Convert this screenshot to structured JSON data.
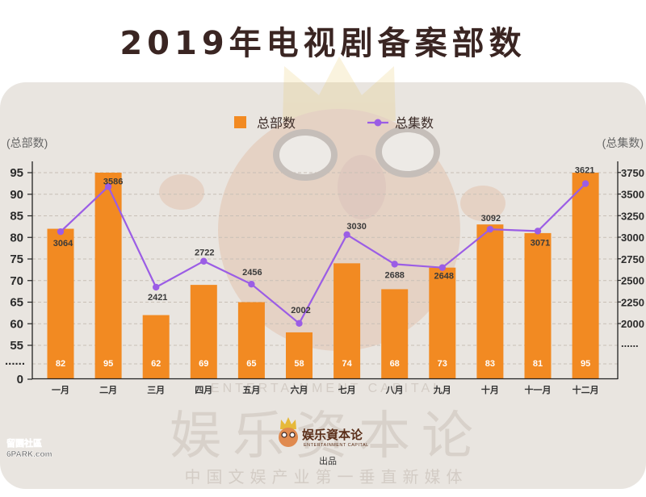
{
  "colors": {
    "bar": "#f28a22",
    "line": "#9b5de5",
    "title": "#3a2522",
    "panel": "#e9e5e0",
    "axis": "#222222",
    "grid": "#c8bfb6"
  },
  "axes": {
    "break_mark": "......"
  },
  "chart_data": {
    "type": "bar",
    "title": "2019年电视剧备案部数",
    "categories": [
      "一月",
      "二月",
      "三月",
      "四月",
      "五月",
      "六月",
      "七月",
      "八月",
      "九月",
      "十月",
      "十一月",
      "十二月"
    ],
    "series": [
      {
        "name": "总部数",
        "type": "bar",
        "axis": "left",
        "values": [
          82,
          95,
          62,
          69,
          65,
          58,
          74,
          68,
          73,
          83,
          81,
          95
        ]
      },
      {
        "name": "总集数",
        "type": "line",
        "axis": "right",
        "values": [
          3064,
          3586,
          2421,
          2722,
          2456,
          2002,
          3030,
          2688,
          2648,
          3092,
          3071,
          3621
        ]
      }
    ],
    "xlabel": "",
    "ylabel": "(总部数)",
    "ylabel_right": "(总集数)",
    "y_left": {
      "ticks": [
        95,
        90,
        85,
        80,
        75,
        70,
        65,
        60,
        55,
        0
      ],
      "range": [
        0,
        95
      ],
      "axis_break": [
        0,
        55
      ]
    },
    "y_right": {
      "ticks": [
        3750,
        3500,
        3250,
        3000,
        2750,
        2500,
        2250,
        2000
      ],
      "range": [
        2000,
        3750
      ],
      "axis_break": true
    },
    "data_labels": true,
    "grid": true,
    "legend_position": "top"
  },
  "watermark": {
    "tagline_en": "ENTERTAINMENT CAPITAL",
    "brand_large": "娱乐资本论",
    "logo_text": "娱乐資本论",
    "logo_subtext": "ENTERTAINMENT CAPITAL",
    "producer": "出品",
    "slogan": "中国文娱产业第一垂直新媒体"
  },
  "site_mark": {
    "name": "留園社區",
    "url": "6PARK.com"
  }
}
